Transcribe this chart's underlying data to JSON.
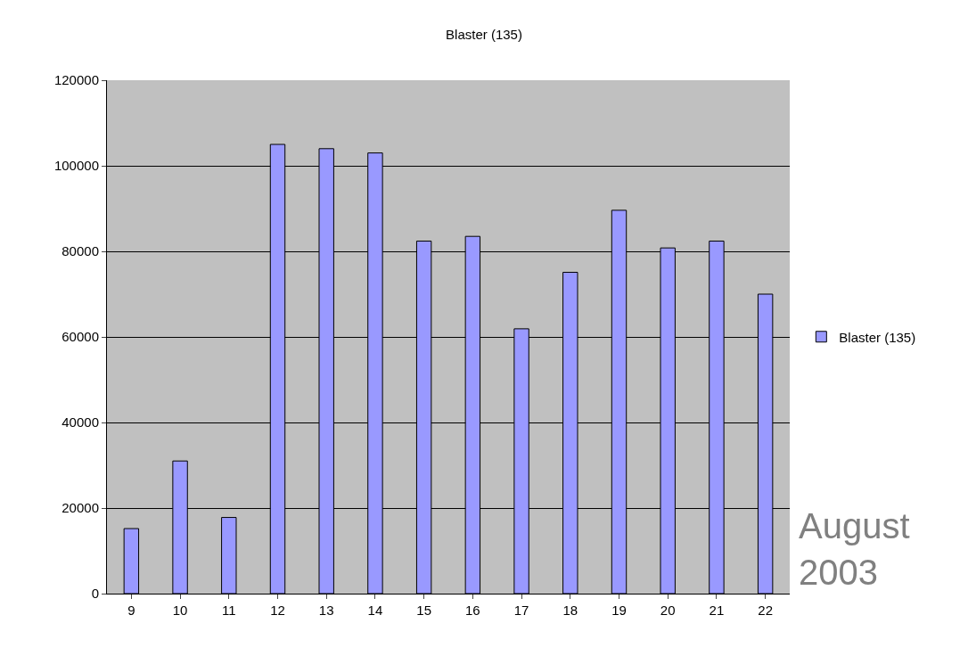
{
  "chart_data": {
    "type": "bar",
    "title": "Blaster (135)",
    "categories": [
      "9",
      "10",
      "11",
      "12",
      "13",
      "14",
      "15",
      "16",
      "17",
      "18",
      "19",
      "20",
      "21",
      "22"
    ],
    "series": [
      {
        "name": "Blaster (135)",
        "color": "#9999ff",
        "values": [
          15200,
          31000,
          17800,
          105000,
          104000,
          103000,
          82400,
          83500,
          61900,
          75100,
          89600,
          80800,
          82400,
          70000
        ]
      }
    ],
    "ylim": [
      0,
      120000
    ],
    "yticks": [
      0,
      20000,
      40000,
      60000,
      80000,
      100000,
      120000
    ],
    "grid": "y",
    "legend": "right",
    "annotations": [
      "August\n2003"
    ]
  }
}
